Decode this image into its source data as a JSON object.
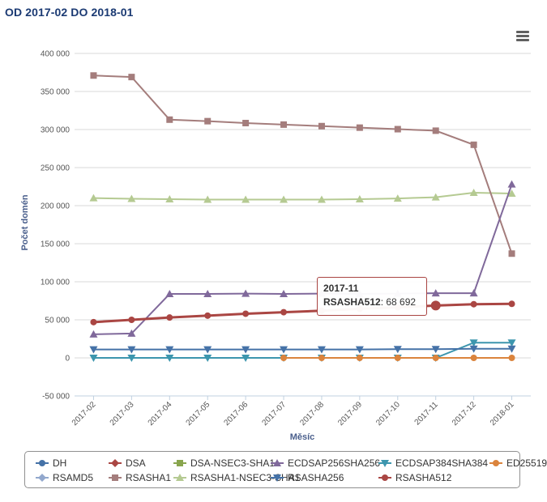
{
  "title": "OD 2017-02 DO 2018-01",
  "menu_icon": "hamburger-menu-icon",
  "chart_data": {
    "type": "line",
    "xlabel": "Měsíc",
    "ylabel": "Počet domén",
    "ylim": [
      -50000,
      400000
    ],
    "yticks": [
      -50000,
      0,
      50000,
      100000,
      150000,
      200000,
      250000,
      300000,
      350000,
      400000
    ],
    "ytick_labels": [
      "-50 000",
      "0",
      "50 000",
      "100 000",
      "150 000",
      "200 000",
      "250 000",
      "300 000",
      "350 000",
      "400 000"
    ],
    "grid": true,
    "legend": "bottom",
    "x": [
      "2017-02",
      "2017-03",
      "2017-04",
      "2017-05",
      "2017-06",
      "2017-07",
      "2017-08",
      "2017-09",
      "2017-10",
      "2017-11",
      "2017-12",
      "2018-01"
    ],
    "series": [
      {
        "name": "DH",
        "color": "#4572a7",
        "marker": "circle",
        "values": [
          null,
          null,
          null,
          null,
          null,
          null,
          null,
          null,
          null,
          null,
          null,
          null
        ]
      },
      {
        "name": "DSA",
        "color": "#aa4643",
        "marker": "diamond",
        "values": [
          null,
          null,
          null,
          null,
          null,
          null,
          null,
          null,
          null,
          null,
          null,
          null
        ]
      },
      {
        "name": "DSA-NSEC3-SHA1",
        "color": "#89a54e",
        "marker": "square",
        "values": [
          null,
          null,
          null,
          null,
          null,
          null,
          null,
          null,
          null,
          null,
          null,
          null
        ]
      },
      {
        "name": "ECDSAP256SHA256",
        "color": "#80699b",
        "marker": "triangle",
        "values": [
          31000,
          32000,
          84000,
          84000,
          84500,
          84000,
          84500,
          84000,
          84500,
          85000,
          85000,
          228000
        ]
      },
      {
        "name": "ECDSAP384SHA384",
        "color": "#3d96ae",
        "marker": "triangle-down",
        "values": [
          0,
          0,
          0,
          0,
          0,
          0,
          0,
          0,
          0,
          0,
          20000,
          20000
        ]
      },
      {
        "name": "ED25519",
        "color": "#db843d",
        "marker": "circle",
        "values": [
          null,
          null,
          null,
          null,
          null,
          0,
          0,
          0,
          0,
          0,
          0,
          0
        ]
      },
      {
        "name": "RSAMD5",
        "color": "#92a8cd",
        "marker": "diamond",
        "values": [
          null,
          null,
          null,
          null,
          null,
          null,
          null,
          null,
          null,
          null,
          null,
          null
        ]
      },
      {
        "name": "RSASHA1",
        "color": "#a47d7c",
        "marker": "square",
        "values": [
          371000,
          369000,
          313000,
          311000,
          308500,
          306500,
          304500,
          302500,
          300500,
          298500,
          280000,
          137000
        ]
      },
      {
        "name": "RSASHA1-NSEC3-SHA1",
        "color": "#b5ca92",
        "marker": "triangle",
        "values": [
          210000,
          209000,
          208500,
          208000,
          208000,
          208000,
          208000,
          208500,
          209500,
          211000,
          217000,
          216000
        ]
      },
      {
        "name": "RSASHA256",
        "color": "#4572a7",
        "marker": "triangle-down",
        "values": [
          11000,
          11000,
          11000,
          11000,
          11000,
          11000,
          11000,
          11000,
          11500,
          11500,
          12000,
          12000
        ]
      },
      {
        "name": "RSASHA512",
        "color": "#aa4643",
        "marker": "circle",
        "values": [
          47000,
          50000,
          53000,
          55500,
          58000,
          60000,
          62000,
          64500,
          66500,
          68692,
          70500,
          71000
        ]
      }
    ],
    "tooltip": {
      "x_label": "2017-11",
      "series": "RSASHA512",
      "value_text": "68 692"
    }
  }
}
